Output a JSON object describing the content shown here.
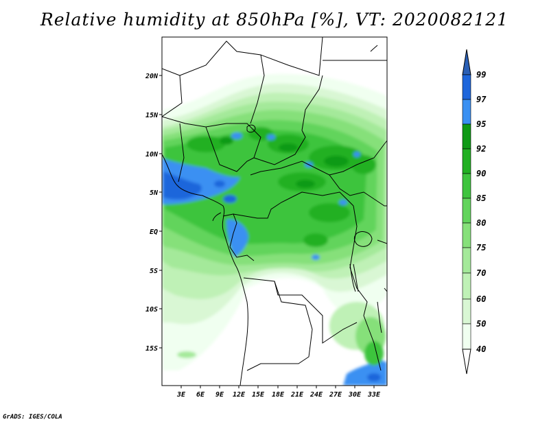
{
  "title": "Relative humidity at 850hPa [%], VT: 2020082121",
  "credit": "GrADS: IGES/COLA",
  "map": {
    "lat_labels": [
      "20N",
      "15N",
      "10N",
      "5N",
      "EQ",
      "5S",
      "10S",
      "15S"
    ],
    "lon_labels": [
      "3E",
      "6E",
      "9E",
      "12E",
      "15E",
      "18E",
      "21E",
      "24E",
      "27E",
      "30E",
      "33E"
    ]
  },
  "colorbar": {
    "levels": [
      "99",
      "97",
      "95",
      "92",
      "90",
      "85",
      "80",
      "75",
      "70",
      "60",
      "50",
      "40"
    ],
    "colors": {
      "c40_50": "#f0fff0",
      "c50_60": "#d9f7d4",
      "c60_70": "#bff1b6",
      "c70_75": "#a4e99a",
      "c75_80": "#86e07a",
      "c80_85": "#62d45c",
      "c85_90": "#3ec43e",
      "c90_92": "#22b023",
      "c92_95": "#0f9a16",
      "c95_97": "#3a90f2",
      "c97_99": "#1e66db",
      "c99": "#2a5fb5"
    }
  }
}
